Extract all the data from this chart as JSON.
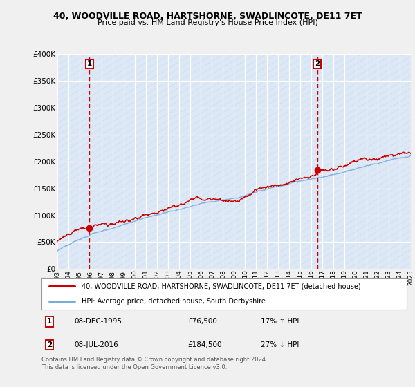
{
  "title": "40, WOODVILLE ROAD, HARTSHORNE, SWADLINCOTE, DE11 7ET",
  "subtitle": "Price paid vs. HM Land Registry's House Price Index (HPI)",
  "red_label": "40, WOODVILLE ROAD, HARTSHORNE, SWADLINCOTE, DE11 7ET (detached house)",
  "blue_label": "HPI: Average price, detached house, South Derbyshire",
  "annotation1_date": "08-DEC-1995",
  "annotation1_price": "£76,500",
  "annotation1_hpi": "17% ↑ HPI",
  "annotation2_date": "08-JUL-2016",
  "annotation2_price": "£184,500",
  "annotation2_hpi": "27% ↓ HPI",
  "footer": "Contains HM Land Registry data © Crown copyright and database right 2024.\nThis data is licensed under the Open Government Licence v3.0.",
  "ylim": [
    0,
    400000
  ],
  "yticks": [
    0,
    50000,
    100000,
    150000,
    200000,
    250000,
    300000,
    350000,
    400000
  ],
  "sale1_year": 1995.92,
  "sale1_price": 76500,
  "sale2_year": 2016.52,
  "sale2_price": 184500,
  "background_color": "#f0f0f0",
  "plot_bg_color": "#dce8f5",
  "hatch_bg_color": "#e8e8e8",
  "red_color": "#cc0000",
  "blue_color": "#7aacda",
  "grid_color": "#ffffff",
  "vline_color": "#cc0000"
}
